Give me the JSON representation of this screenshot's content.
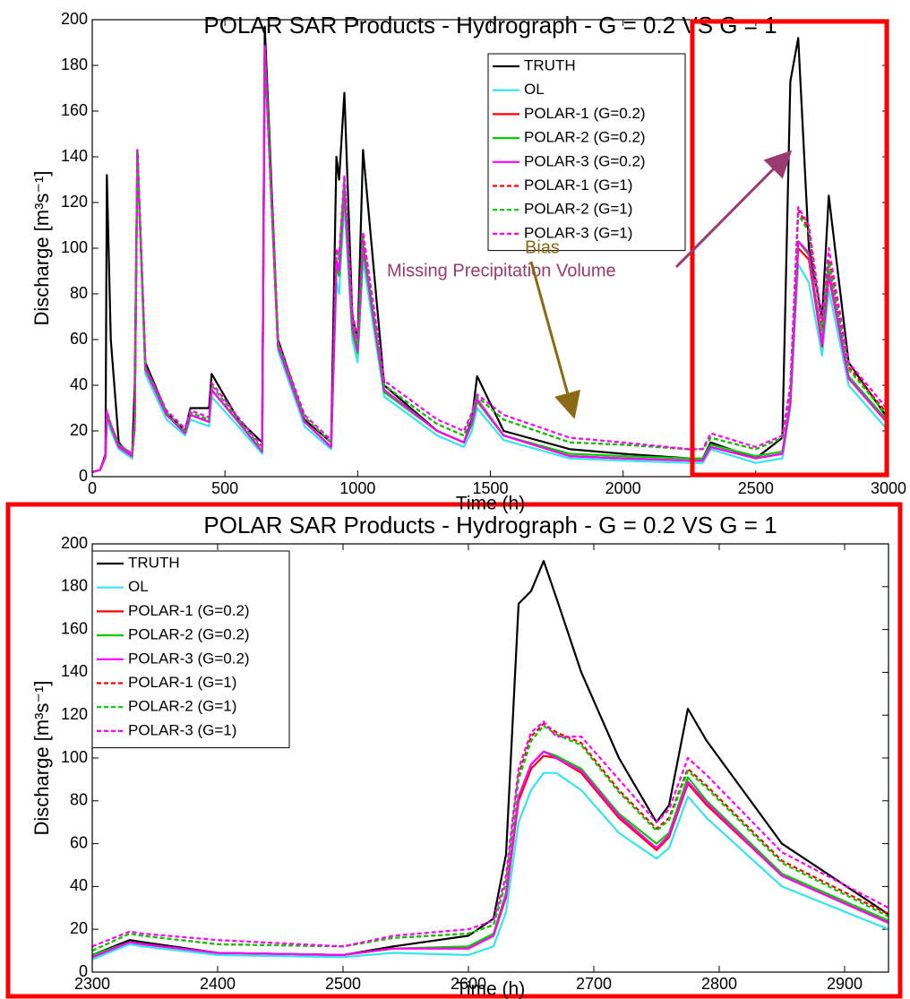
{
  "chart_data": [
    {
      "type": "line",
      "title": "POLAR SAR Products - Hydrograph - G = 0.2 VS G = 1",
      "xlabel": "Time (h)",
      "ylabel": "Discharge [m³s⁻¹]",
      "xlim": [
        0,
        3000
      ],
      "xticks": [
        0,
        500,
        1000,
        1500,
        2000,
        2500,
        3000
      ],
      "ylim": [
        0,
        200
      ],
      "yticks": [
        0,
        20,
        40,
        60,
        80,
        100,
        120,
        140,
        160,
        180,
        200
      ],
      "legend": "upper right",
      "annotations": [
        {
          "text": "Missing Precipitation Volume",
          "color": "#9b3a6e"
        },
        {
          "text": "Bias",
          "color": "#8b6914"
        }
      ],
      "x": [
        0,
        30,
        50,
        55,
        70,
        100,
        150,
        160,
        170,
        200,
        280,
        350,
        370,
        440,
        450,
        550,
        640,
        650,
        700,
        800,
        900,
        920,
        930,
        950,
        980,
        1000,
        1020,
        1100,
        1300,
        1400,
        1430,
        1450,
        1550,
        1800,
        2000,
        2250,
        2300,
        2330,
        2500,
        2600,
        2630,
        2660,
        2700,
        2750,
        2775,
        2850,
        3000
      ],
      "series": [
        {
          "name": "TRUTH",
          "color": "#000000",
          "style": "solid",
          "values": [
            2,
            3,
            10,
            132,
            60,
            15,
            8,
            40,
            143,
            50,
            28,
            20,
            30,
            30,
            45,
            25,
            15,
            197,
            60,
            25,
            15,
            140,
            130,
            168,
            70,
            60,
            143,
            40,
            20,
            15,
            25,
            44,
            20,
            12,
            10,
            8,
            8,
            15,
            8,
            17,
            173,
            192,
            100,
            70,
            123,
            50,
            25
          ]
        },
        {
          "name": "OL",
          "color": "#33e6ee",
          "style": "solid",
          "values": [
            2,
            3,
            8,
            25,
            20,
            12,
            8,
            20,
            140,
            45,
            25,
            18,
            25,
            22,
            35,
            22,
            10,
            185,
            55,
            22,
            12,
            85,
            80,
            120,
            60,
            50,
            95,
            35,
            18,
            13,
            20,
            30,
            16,
            8,
            7,
            6,
            6,
            12,
            6,
            8,
            30,
            93,
            85,
            53,
            82,
            40,
            20
          ]
        },
        {
          "name": "POLAR-1 (G=0.2)",
          "color": "#ff0000",
          "style": "solid",
          "values": [
            2,
            3,
            9,
            27,
            22,
            13,
            9,
            22,
            142,
            47,
            27,
            19,
            27,
            24,
            38,
            24,
            11,
            187,
            57,
            24,
            13,
            92,
            88,
            125,
            64,
            54,
            100,
            37,
            20,
            15,
            23,
            33,
            18,
            9,
            8,
            7,
            7,
            13,
            8,
            10,
            32,
            100,
            95,
            57,
            88,
            43,
            23
          ]
        },
        {
          "name": "POLAR-2 (G=0.2)",
          "color": "#00cc00",
          "style": "solid",
          "values": [
            2,
            3,
            9,
            27,
            22,
            13,
            9,
            22,
            142,
            47,
            27,
            19,
            27,
            24,
            38,
            24,
            11,
            187,
            57,
            24,
            13,
            92,
            88,
            125,
            64,
            54,
            100,
            37,
            20,
            15,
            23,
            33,
            18,
            10,
            9,
            8,
            8,
            14,
            9,
            11,
            33,
            103,
            97,
            59,
            90,
            44,
            24
          ]
        },
        {
          "name": "POLAR-3 (G=0.2)",
          "color": "#ff00ff",
          "style": "solid",
          "values": [
            2,
            3,
            9,
            28,
            22,
            13,
            9,
            22,
            142,
            47,
            27,
            19,
            27,
            24,
            38,
            24,
            11,
            187,
            57,
            24,
            13,
            95,
            90,
            128,
            66,
            55,
            102,
            38,
            20,
            15,
            24,
            34,
            18,
            9,
            8,
            7,
            7,
            13,
            8,
            10,
            33,
            103,
            98,
            58,
            89,
            43,
            23
          ]
        },
        {
          "name": "POLAR-1 (G=1)",
          "color": "#ff0000",
          "style": "dashed",
          "values": [
            2,
            3,
            10,
            28,
            23,
            14,
            10,
            24,
            143,
            48,
            28,
            20,
            28,
            25,
            40,
            25,
            12,
            188,
            58,
            26,
            15,
            98,
            95,
            130,
            70,
            58,
            105,
            40,
            23,
            18,
            27,
            35,
            25,
            15,
            14,
            12,
            12,
            17,
            12,
            17,
            38,
            117,
            108,
            65,
            95,
            48,
            27
          ]
        },
        {
          "name": "POLAR-2 (G=1)",
          "color": "#00cc00",
          "style": "dashed",
          "values": [
            2,
            3,
            10,
            28,
            23,
            14,
            10,
            24,
            143,
            48,
            28,
            20,
            28,
            25,
            40,
            25,
            12,
            188,
            58,
            26,
            15,
            98,
            95,
            130,
            70,
            58,
            105,
            40,
            23,
            18,
            27,
            35,
            25,
            15,
            14,
            12,
            12,
            17,
            12,
            17,
            38,
            115,
            107,
            64,
            94,
            47,
            26
          ]
        },
        {
          "name": "POLAR-3 (G=1)",
          "color": "#ff00ff",
          "style": "dashed",
          "values": [
            2,
            3,
            10,
            29,
            23,
            14,
            10,
            24,
            143,
            48,
            29,
            21,
            29,
            26,
            41,
            26,
            13,
            189,
            59,
            27,
            16,
            100,
            96,
            132,
            72,
            60,
            107,
            42,
            25,
            20,
            28,
            36,
            27,
            17,
            15,
            12,
            12,
            19,
            13,
            18,
            40,
            118,
            110,
            68,
            100,
            50,
            29
          ]
        }
      ]
    },
    {
      "type": "line",
      "title": "POLAR SAR Products - Hydrograph - G = 0.2 VS G = 1",
      "xlabel": "Time (h)",
      "ylabel": "Discharge [m³s⁻¹]",
      "xlim": [
        2300,
        2935
      ],
      "xticks": [
        2300,
        2400,
        2500,
        2600,
        2700,
        2800,
        2900
      ],
      "ylim": [
        0,
        200
      ],
      "yticks": [
        0,
        20,
        40,
        60,
        80,
        100,
        120,
        140,
        160,
        180,
        200
      ],
      "legend": "upper left",
      "x": [
        2300,
        2330,
        2340,
        2400,
        2500,
        2540,
        2600,
        2620,
        2630,
        2640,
        2650,
        2660,
        2670,
        2690,
        2720,
        2750,
        2760,
        2775,
        2790,
        2850,
        2935
      ],
      "series": [
        {
          "name": "TRUTH",
          "color": "#000000",
          "style": "solid",
          "values": [
            8,
            15,
            14,
            9,
            8,
            12,
            17,
            25,
            55,
            172,
            178,
            192,
            175,
            140,
            100,
            70,
            78,
            123,
            108,
            60,
            27
          ]
        },
        {
          "name": "OL",
          "color": "#33e6ee",
          "style": "solid",
          "values": [
            6,
            13,
            12,
            8,
            7,
            9,
            8,
            12,
            28,
            70,
            85,
            93,
            93,
            85,
            65,
            53,
            58,
            82,
            72,
            40,
            20
          ]
        },
        {
          "name": "POLAR-1 (G=0.2)",
          "color": "#ff0000",
          "style": "solid",
          "values": [
            7,
            14,
            13,
            9,
            8,
            11,
            11,
            17,
            35,
            80,
            95,
            101,
            100,
            93,
            72,
            57,
            63,
            88,
            78,
            45,
            23
          ]
        },
        {
          "name": "POLAR-2 (G=0.2)",
          "color": "#00cc00",
          "style": "solid",
          "values": [
            8,
            14,
            13,
            9,
            8,
            11,
            12,
            18,
            37,
            82,
            97,
            103,
            101,
            95,
            74,
            60,
            65,
            91,
            80,
            46,
            24
          ]
        },
        {
          "name": "POLAR-3 (G=0.2)",
          "color": "#ff00ff",
          "style": "solid",
          "values": [
            7,
            14,
            13,
            9,
            8,
            11,
            11,
            17,
            36,
            82,
            97,
            103,
            100,
            94,
            73,
            58,
            64,
            89,
            79,
            45,
            23
          ]
        },
        {
          "name": "POLAR-1 (G=1)",
          "color": "#ff0000",
          "style": "dashed",
          "values": [
            10,
            18,
            17,
            13,
            12,
            16,
            18,
            22,
            42,
            92,
            110,
            116,
            112,
            107,
            85,
            67,
            72,
            95,
            87,
            52,
            27
          ]
        },
        {
          "name": "POLAR-2 (G=1)",
          "color": "#00cc00",
          "style": "dashed",
          "values": [
            10,
            18,
            17,
            13,
            12,
            16,
            18,
            22,
            42,
            90,
            108,
            115,
            111,
            106,
            84,
            66,
            71,
            94,
            86,
            51,
            26
          ]
        },
        {
          "name": "POLAR-3 (G=1)",
          "color": "#ff00ff",
          "style": "dashed",
          "values": [
            12,
            19,
            18,
            15,
            12,
            17,
            20,
            24,
            45,
            95,
            112,
            117,
            110,
            110,
            90,
            70,
            76,
            100,
            92,
            56,
            30
          ]
        }
      ]
    }
  ]
}
